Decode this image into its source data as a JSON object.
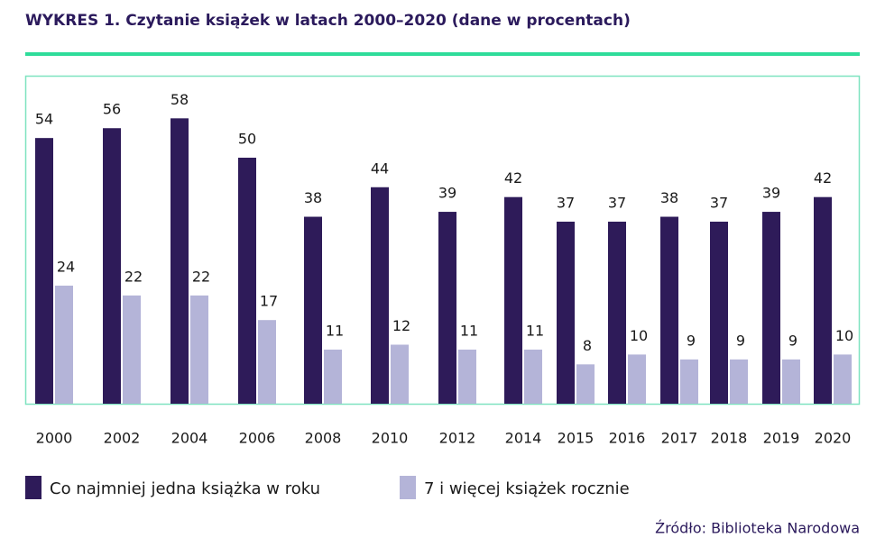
{
  "chart_data": {
    "type": "bar",
    "title": "WYKRES 1. Czytanie książek w latach 2000–2020 (dane w procentach)",
    "categories": [
      "2000",
      "2002",
      "2004",
      "2006",
      "2008",
      "2010",
      "2012",
      "2014",
      "2015",
      "2016",
      "2017",
      "2018",
      "2019",
      "2020"
    ],
    "series": [
      {
        "name": "Co najmniej jedna książka w roku",
        "color": "#2e1b59",
        "values": [
          54,
          56,
          58,
          50,
          38,
          44,
          39,
          42,
          37,
          37,
          38,
          37,
          39,
          42
        ]
      },
      {
        "name": "7 i więcej książek rocznie",
        "color": "#b4b4d8",
        "values": [
          24,
          22,
          22,
          17,
          11,
          12,
          11,
          11,
          8,
          10,
          9,
          9,
          9,
          10
        ]
      }
    ],
    "source": "Źródło: Biblioteka Narodowa"
  }
}
